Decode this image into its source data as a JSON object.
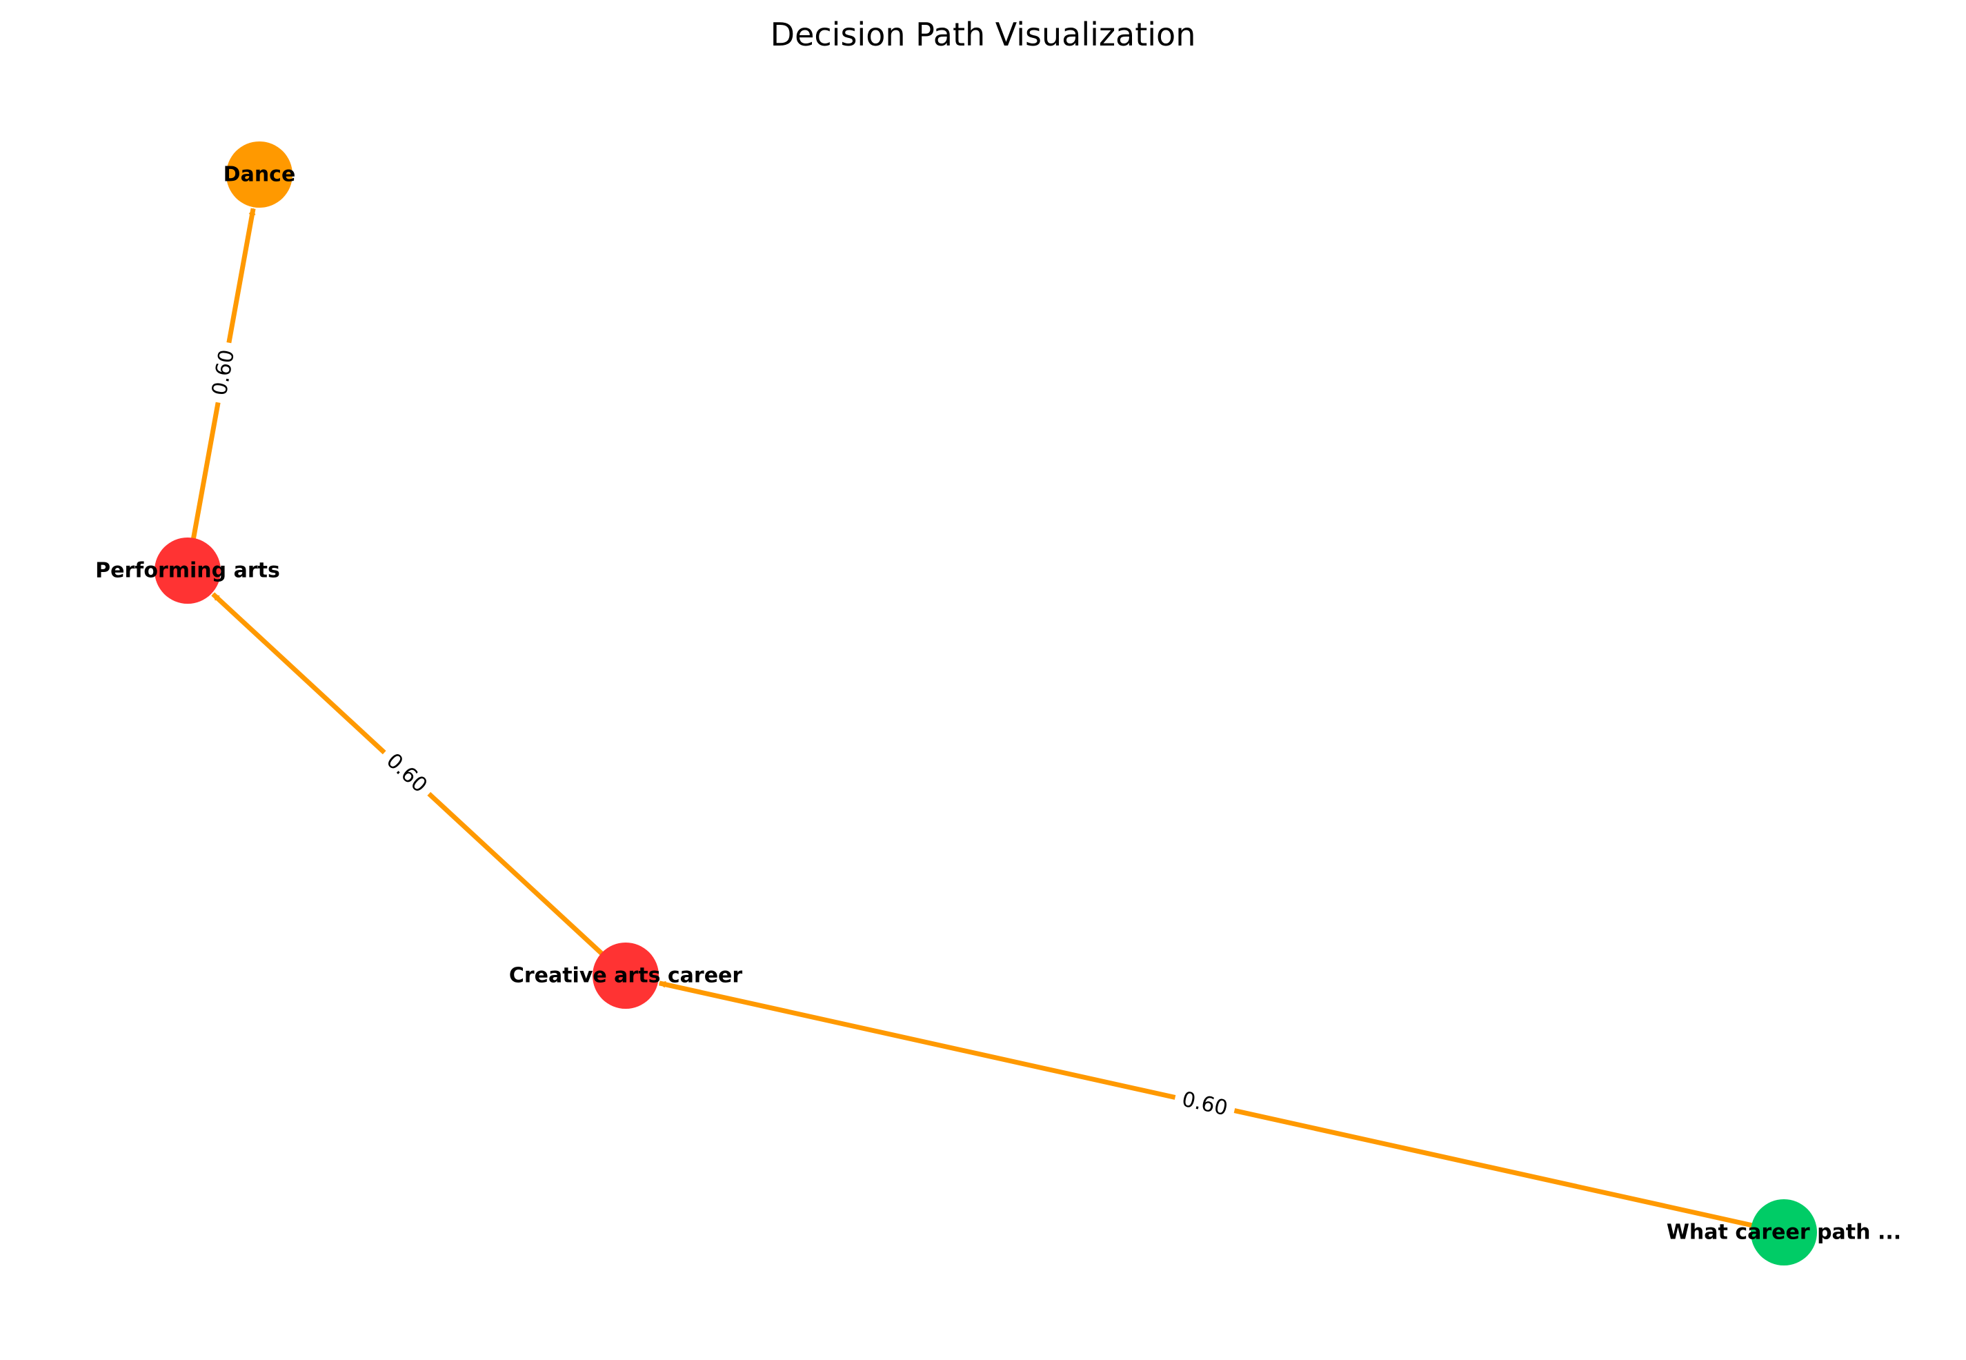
{
  "diagram": {
    "title": "Decision Path Visualization",
    "edge_color": "#ff9900",
    "nodes": [
      {
        "id": "dance",
        "label": "Dance",
        "color": "#ff9900"
      },
      {
        "id": "performing",
        "label": "Performing arts",
        "color": "#ff3333"
      },
      {
        "id": "creative",
        "label": "Creative arts career",
        "color": "#ff3333"
      },
      {
        "id": "root",
        "label": "What career path ...",
        "color": "#00cc66"
      }
    ],
    "edges": [
      {
        "from": "root",
        "to": "creative",
        "label": "0.60"
      },
      {
        "from": "creative",
        "to": "performing",
        "label": "0.60"
      },
      {
        "from": "performing",
        "to": "dance",
        "label": "0.60"
      }
    ]
  }
}
